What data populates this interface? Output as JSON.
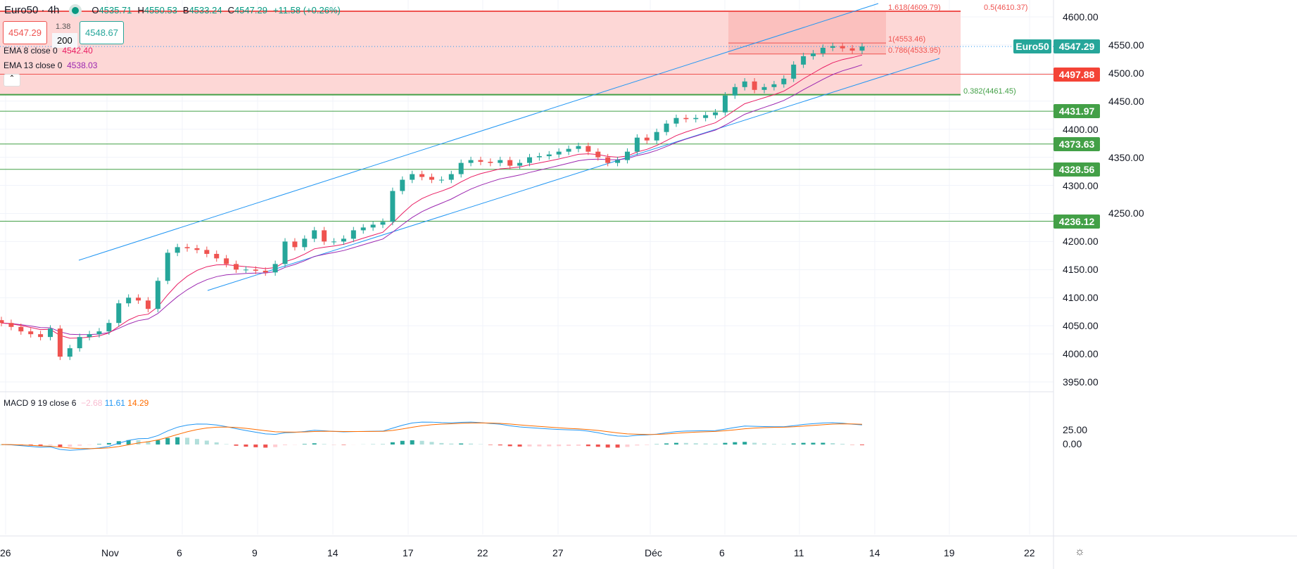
{
  "header": {
    "symbol": "Euro50 · 4h",
    "open_label": "O",
    "open": "4535.71",
    "high_label": "H",
    "high": "4550.53",
    "low_label": "B",
    "low": "4533.24",
    "close_label": "C",
    "close": "4547.29",
    "change": "+11.58 (+0.26%)"
  },
  "trade": {
    "sell": "4547.29",
    "spread": "1.38",
    "qty": "200",
    "buy": "4548.67"
  },
  "indicators": {
    "ema8_label": "EMA 8 close 0",
    "ema8": "4542.40",
    "ema13_label": "EMA 13 close 0",
    "ema13": "4538.03",
    "macd_label": "MACD 9 19 close 6",
    "macd_hist": "−2.68",
    "macd": "11.61",
    "macd_signal": "14.29"
  },
  "colors": {
    "up": "#26a69a",
    "down": "#ef5350",
    "ema8": "#e91e63",
    "ema13": "#9c27b0",
    "channel": "#2196f3",
    "macd": "#2196f3",
    "signal": "#ff6d00",
    "zone": "#fdd7d6"
  },
  "price_axis": [
    "4600.00",
    "4550.00",
    "4500.00",
    "4450.00",
    "4400.00",
    "4350.00",
    "4300.00",
    "4250.00",
    "4200.00",
    "4150.00",
    "4100.00",
    "4050.00",
    "4000.00",
    "3950.00"
  ],
  "macd_axis": [
    "25.00",
    "0.00"
  ],
  "badges": {
    "symbol": "Euro50",
    "last": "4547.29",
    "red": "4497.88",
    "green": [
      "4431.97",
      "4373.63",
      "4328.56",
      "4236.12"
    ]
  },
  "fib": {
    "f1618": "1.618(4609.79)",
    "f05": "0.5(4610.37)",
    "f1": "1(4553.46)",
    "f0786": "0.786(4533.95)",
    "f0382": "0.382(4461.45)"
  },
  "dates": [
    "26",
    "Nov",
    "6",
    "9",
    "14",
    "17",
    "22",
    "27",
    "Déc",
    "6",
    "11",
    "14",
    "19",
    "22"
  ],
  "chart_data": {
    "type": "candlestick",
    "symbol": "Euro50",
    "interval": "4h",
    "ylim": [
      3930,
      4625
    ],
    "levels": {
      "red": [
        4610,
        4497.88
      ],
      "green": [
        4461.45,
        4431.97,
        4373.63,
        4328.56,
        4236.12
      ]
    },
    "closes": [
      4055,
      4048,
      4040,
      4035,
      4030,
      4045,
      3995,
      4010,
      4030,
      4035,
      4040,
      4055,
      4090,
      4100,
      4095,
      4080,
      4130,
      4180,
      4190,
      4188,
      4185,
      4178,
      4170,
      4160,
      4150,
      4150,
      4148,
      4145,
      4160,
      4200,
      4190,
      4205,
      4220,
      4200,
      4200,
      4205,
      4220,
      4225,
      4230,
      4235,
      4290,
      4310,
      4320,
      4315,
      4310,
      4310,
      4320,
      4340,
      4345,
      4342,
      4340,
      4345,
      4335,
      4340,
      4350,
      4352,
      4355,
      4360,
      4365,
      4370,
      4360,
      4350,
      4340,
      4345,
      4360,
      4385,
      4380,
      4395,
      4410,
      4420,
      4418,
      4420,
      4425,
      4430,
      4460,
      4475,
      4485,
      4470,
      4475,
      4480,
      4490,
      4515,
      4530,
      4535,
      4545,
      4548,
      4544,
      4540,
      4547.29
    ]
  }
}
